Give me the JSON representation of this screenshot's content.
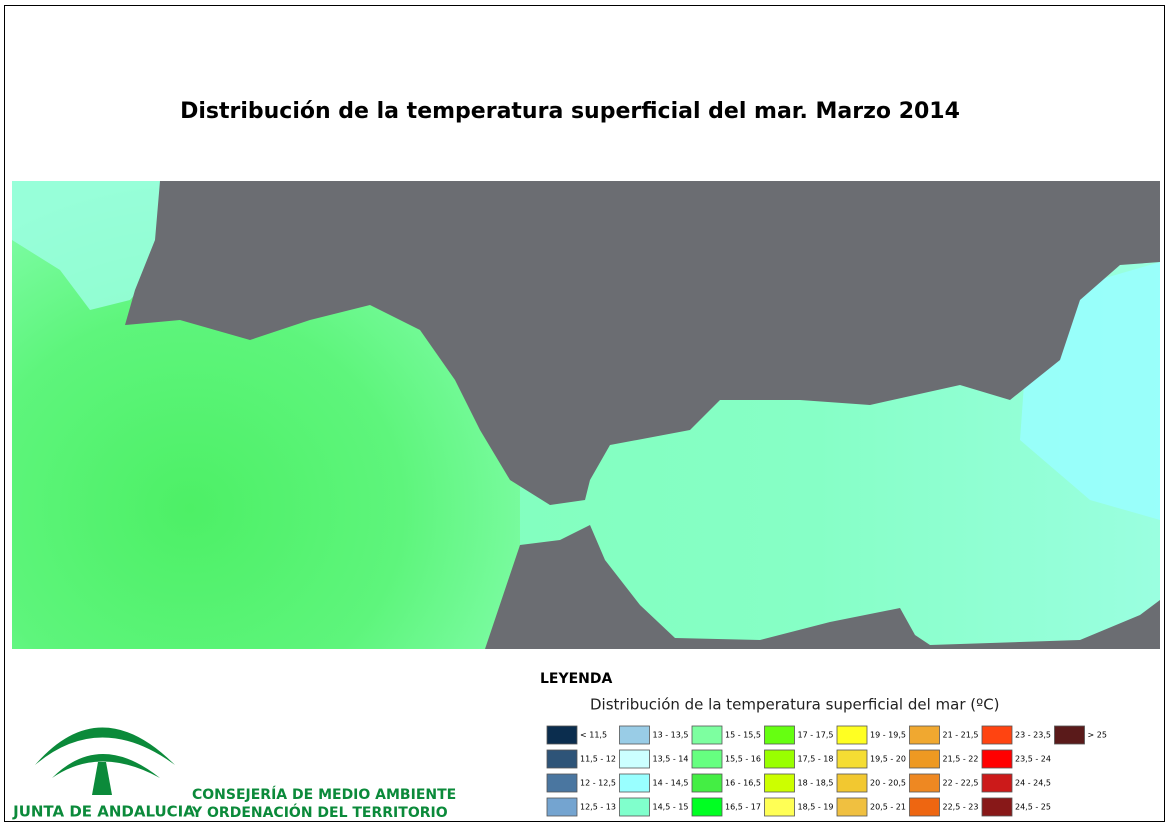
{
  "header": {
    "title": "Distribución de la temperatura superficial del mar. Marzo 2014"
  },
  "legend": {
    "heading": "LEYENDA",
    "subtitle": "Distribución de la temperatura superficial del mar  (ºC)",
    "items": [
      {
        "label": "< 11,5",
        "color": "#0b2d4e"
      },
      {
        "label": "11,5 - 12",
        "color": "#2e5478"
      },
      {
        "label": "12 - 12,5",
        "color": "#4a76a0"
      },
      {
        "label": "12,5 - 13",
        "color": "#74a4d0"
      },
      {
        "label": "13 - 13,5",
        "color": "#99cce6"
      },
      {
        "label": "13,5 - 14",
        "color": "#ccffff"
      },
      {
        "label": "14 - 14,5",
        "color": "#99ffff"
      },
      {
        "label": "14,5 - 15",
        "color": "#80ffcc"
      },
      {
        "label": "15 - 15,5",
        "color": "#7dffa0"
      },
      {
        "label": "15,5 - 16",
        "color": "#66ff80"
      },
      {
        "label": "16 - 16,5",
        "color": "#44ee44"
      },
      {
        "label": "16,5 - 17",
        "color": "#00ff22"
      },
      {
        "label": "17 - 17,5",
        "color": "#66ff11"
      },
      {
        "label": "17,5 - 18",
        "color": "#99ff00"
      },
      {
        "label": "18 - 18,5",
        "color": "#ccff00"
      },
      {
        "label": "18,5 - 19",
        "color": "#ffff55"
      },
      {
        "label": "19 - 19,5",
        "color": "#ffff22"
      },
      {
        "label": "19,5 - 20",
        "color": "#f5dd33"
      },
      {
        "label": "20 - 20,5",
        "color": "#f2c830"
      },
      {
        "label": "20,5 - 21",
        "color": "#f0c040"
      },
      {
        "label": "21 - 21,5",
        "color": "#f0a830"
      },
      {
        "label": "21,5 - 22",
        "color": "#ee9922"
      },
      {
        "label": "22 - 22,5",
        "color": "#ee8822"
      },
      {
        "label": "22,5 - 23",
        "color": "#ee6611"
      },
      {
        "label": "23 - 23,5",
        "color": "#ff4411"
      },
      {
        "label": "23,5 - 24",
        "color": "#ff0000"
      },
      {
        "label": "24 - 24,5",
        "color": "#cc1a1a"
      },
      {
        "label": "24,5 - 25",
        "color": "#881818"
      },
      {
        "label": "> 25",
        "color": "#5a1a1a"
      }
    ]
  },
  "footer": {
    "logo_text": "JUNTA DE ANDALUCIA",
    "department": [
      "CONSEJERÍA DE MEDIO AMBIENTE",
      "Y ORDENACIÓN DEL TERRITORIO"
    ]
  }
}
